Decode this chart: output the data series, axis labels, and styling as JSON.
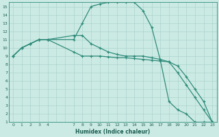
{
  "xlabel": "Humidex (Indice chaleur)",
  "bg_color": "#cceae4",
  "grid_color": "#aad4cc",
  "line_color": "#2e8b7a",
  "xlim": [
    -0.5,
    23.5
  ],
  "ylim": [
    1,
    15.5
  ],
  "xticks": [
    0,
    1,
    2,
    3,
    4,
    7,
    8,
    9,
    10,
    11,
    12,
    13,
    14,
    15,
    16,
    17,
    18,
    19,
    20,
    21,
    22,
    23
  ],
  "yticks": [
    1,
    2,
    3,
    4,
    5,
    6,
    7,
    8,
    9,
    10,
    11,
    12,
    13,
    14,
    15
  ],
  "line1_x": [
    0,
    1,
    2,
    3,
    4,
    7,
    8,
    9,
    10,
    11,
    12,
    13,
    14,
    15,
    16,
    17,
    18,
    19,
    20,
    21,
    22,
    23
  ],
  "line1_y": [
    9,
    10,
    10.5,
    11,
    11,
    11,
    13,
    15,
    15.3,
    15.5,
    15.5,
    15.5,
    15.5,
    14.5,
    12.5,
    8.5,
    3.5,
    2.5,
    2,
    1,
    1,
    1
  ],
  "line2_x": [
    0,
    1,
    2,
    3,
    4,
    7,
    8,
    9,
    10,
    11,
    12,
    13,
    14,
    15,
    16,
    17,
    18,
    19,
    20,
    21,
    22,
    23
  ],
  "line2_y": [
    9,
    10,
    10.5,
    11,
    11,
    9.5,
    9.0,
    9.0,
    9.0,
    8.9,
    8.8,
    8.8,
    8.7,
    8.6,
    8.5,
    8.4,
    8.3,
    7.0,
    5.5,
    4.0,
    2.5,
    1
  ],
  "line3_x": [
    0,
    1,
    2,
    3,
    4,
    7,
    8,
    9,
    10,
    11,
    12,
    13,
    14,
    15,
    16,
    17,
    18,
    19,
    20,
    21,
    22,
    23
  ],
  "line3_y": [
    9,
    10,
    10.5,
    11,
    11,
    11.5,
    11.5,
    10.5,
    10.0,
    9.5,
    9.2,
    9.0,
    9.0,
    9.0,
    8.8,
    8.6,
    8.3,
    7.8,
    6.5,
    5.0,
    3.5,
    1
  ]
}
